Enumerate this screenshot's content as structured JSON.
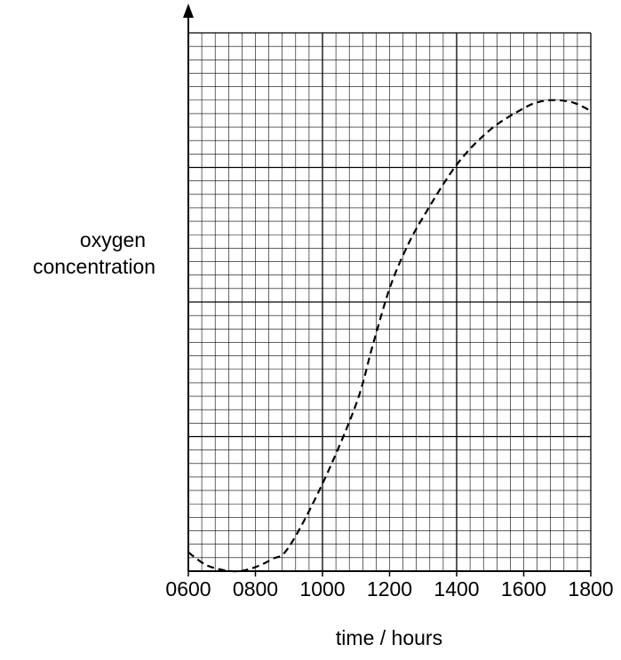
{
  "chart_data": {
    "type": "line",
    "xlabel": "time / hours",
    "ylabel": [
      "oxygen",
      "concentration"
    ],
    "x": [
      6,
      6.5,
      7,
      7.5,
      8,
      8.5,
      9,
      10,
      11,
      11.5,
      12,
      12.5,
      13,
      14,
      15,
      16,
      16.5,
      17,
      17.5,
      18
    ],
    "series": [
      {
        "color": "#000000",
        "values": [
          1.4,
          0.5,
          0.1,
          0,
          0.3,
          0.9,
          1.8,
          6.5,
          12.4,
          16.8,
          21.0,
          24.0,
          26.3,
          30.2,
          32.8,
          34.4,
          34.9,
          35.0,
          34.8,
          34.2
        ]
      }
    ],
    "xlim": [
      6,
      18
    ],
    "xticks": [
      {
        "value": 6,
        "label": "0600"
      },
      {
        "value": 8,
        "label": "0800"
      },
      {
        "value": 10,
        "label": "1000"
      },
      {
        "value": 12,
        "label": "1200"
      },
      {
        "value": 14,
        "label": "1400"
      },
      {
        "value": 16,
        "label": "1600"
      },
      {
        "value": 18,
        "label": "1800"
      }
    ],
    "ylim": [
      0,
      40
    ],
    "grid": true,
    "dashed": true
  }
}
